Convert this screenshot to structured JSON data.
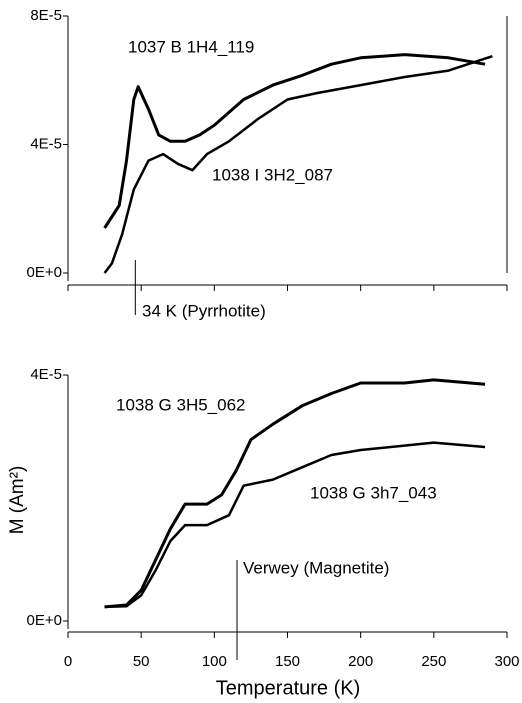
{
  "chart_data": [
    {
      "type": "line",
      "xlim": [
        0,
        300
      ],
      "ylim": [
        0,
        8e-05
      ],
      "yticks": [
        {
          "value": 0,
          "label": "0E+0"
        },
        {
          "value": 4e-05,
          "label": "4E-5"
        },
        {
          "value": 8e-05,
          "label": "8E-5"
        }
      ],
      "series": [
        {
          "name": "1037 B 1H4_119",
          "color": "#000000",
          "x": [
            25,
            35,
            40,
            45,
            48,
            55,
            62,
            70,
            80,
            90,
            100,
            120,
            140,
            160,
            180,
            200,
            230,
            260,
            285
          ],
          "values": [
            1.4e-05,
            2.1e-05,
            3.5e-05,
            5.4e-05,
            5.8e-05,
            5.1e-05,
            4.3e-05,
            4.1e-05,
            4.1e-05,
            4.3e-05,
            4.6e-05,
            5.4e-05,
            5.85e-05,
            6.15e-05,
            6.5e-05,
            6.7e-05,
            6.8e-05,
            6.7e-05,
            6.5e-05
          ]
        },
        {
          "name": "1038 I 3H2_087",
          "color": "#000000",
          "x": [
            25,
            30,
            37,
            45,
            55,
            65,
            75,
            85,
            95,
            110,
            130,
            150,
            170,
            200,
            230,
            260,
            290
          ],
          "values": [
            0,
            3e-06,
            1.2e-05,
            2.6e-05,
            3.5e-05,
            3.7e-05,
            3.4e-05,
            3.2e-05,
            3.7e-05,
            4.1e-05,
            4.8e-05,
            5.4e-05,
            5.6e-05,
            5.85e-05,
            6.1e-05,
            6.3e-05,
            6.75e-05
          ]
        }
      ],
      "annotations": [
        {
          "text": "34 K (Pyrrhotite)",
          "x": 46
        }
      ]
    },
    {
      "type": "line",
      "xlabel": "Temperature (K)",
      "ylabel": "M (Am²)",
      "xlim": [
        0,
        300
      ],
      "xticks": [
        0,
        50,
        100,
        150,
        200,
        250,
        300
      ],
      "ylim": [
        0,
        4e-05
      ],
      "yticks": [
        {
          "value": 0,
          "label": "0E+0"
        },
        {
          "value": 4e-05,
          "label": "4E-5"
        }
      ],
      "series": [
        {
          "name": "1038 G 3H5_062",
          "color": "#000000",
          "x": [
            25,
            40,
            50,
            60,
            70,
            80,
            95,
            105,
            115,
            125,
            140,
            160,
            180,
            200,
            230,
            250,
            285
          ],
          "values": [
            2.3e-06,
            2.6e-06,
            5e-06,
            1e-05,
            1.5e-05,
            1.9e-05,
            1.9e-05,
            2.05e-05,
            2.45e-05,
            2.95e-05,
            3.2e-05,
            3.5e-05,
            3.7e-05,
            3.87e-05,
            3.87e-05,
            3.92e-05,
            3.85e-05
          ]
        },
        {
          "name": "1038 G 3h7_043",
          "color": "#000000",
          "x": [
            25,
            40,
            50,
            60,
            70,
            80,
            95,
            110,
            120,
            140,
            160,
            180,
            200,
            250,
            285
          ],
          "values": [
            2.3e-06,
            2.4e-06,
            4.2e-06,
            8.3e-06,
            1.3e-05,
            1.56e-05,
            1.56e-05,
            1.72e-05,
            2.2e-05,
            2.3e-05,
            2.5e-05,
            2.7e-05,
            2.78e-05,
            2.9e-05,
            2.83e-05
          ]
        }
      ],
      "annotations": [
        {
          "text": "Verwey (Magnetite)",
          "x": 115.5
        }
      ]
    }
  ]
}
